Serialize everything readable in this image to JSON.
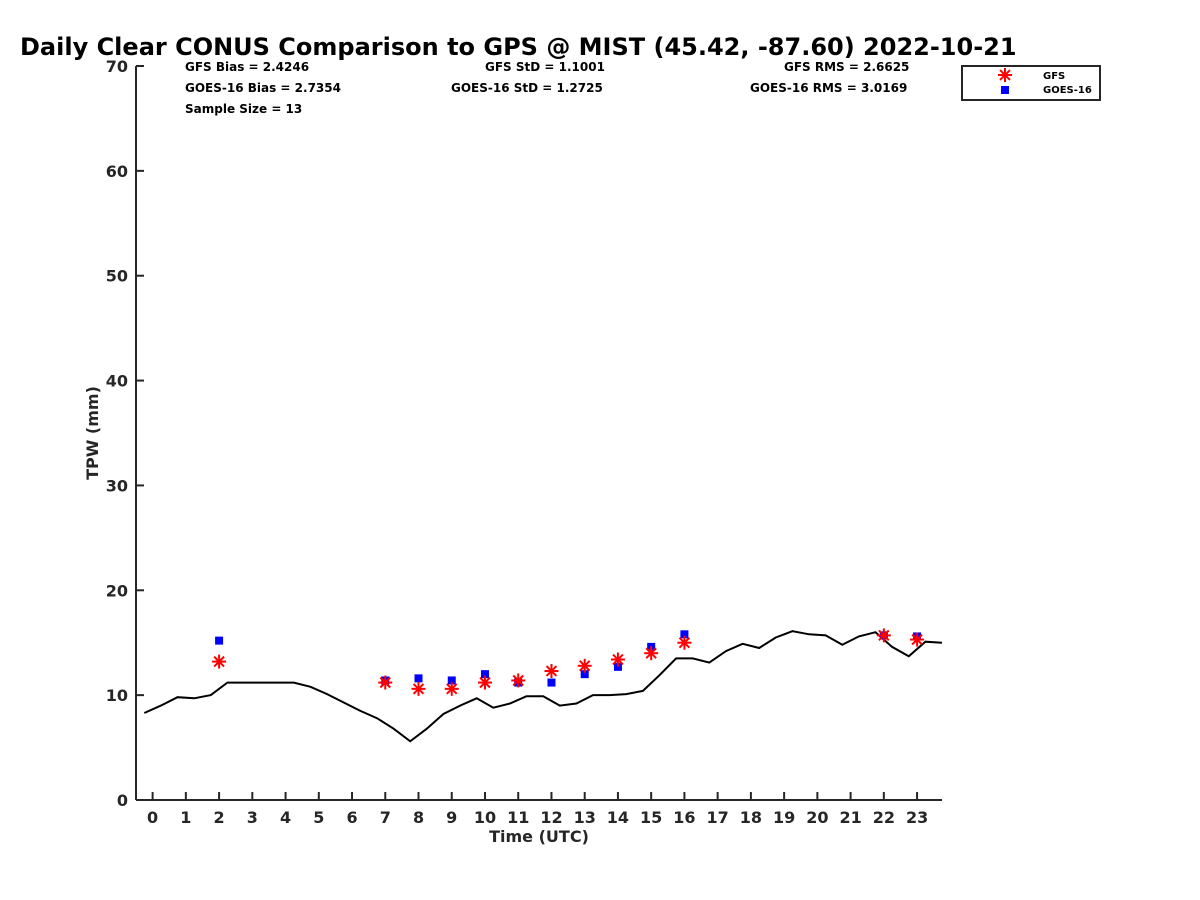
{
  "chart_data": {
    "type": "scatter",
    "title": "Daily Clear CONUS Comparison to GPS @ MIST (45.42, -87.60) 2022-10-21",
    "xlabel": "Time (UTC)",
    "ylabel": "TPW (mm)",
    "xlim": [
      -0.5,
      23.75
    ],
    "ylim": [
      0,
      70
    ],
    "x_ticks": [
      0,
      1,
      2,
      3,
      4,
      5,
      6,
      7,
      8,
      9,
      10,
      11,
      12,
      13,
      14,
      15,
      16,
      17,
      18,
      19,
      20,
      21,
      22,
      23
    ],
    "y_ticks": [
      0,
      10,
      20,
      30,
      40,
      50,
      60,
      70
    ],
    "grid": false,
    "legend_position": "top-right",
    "stats": {
      "gfs_bias": "GFS Bias = 2.4246",
      "goes_bias": "GOES-16 Bias = 2.7354",
      "sample_size": "Sample Size = 13",
      "gfs_std": "GFS StD = 1.1001",
      "goes_std": "GOES-16 StD = 1.2725",
      "gfs_rms": "GFS RMS = 2.6625",
      "goes_rms": "GOES-16 RMS = 3.0169"
    },
    "series": [
      {
        "name": "GFS",
        "marker": "asterisk",
        "color": "#ff0000",
        "points": [
          [
            2,
            13.2
          ],
          [
            7,
            11.2
          ],
          [
            8,
            10.6
          ],
          [
            9,
            10.6
          ],
          [
            10,
            11.2
          ],
          [
            11,
            11.4
          ],
          [
            12,
            12.3
          ],
          [
            13,
            12.8
          ],
          [
            14,
            13.4
          ],
          [
            15,
            14.0
          ],
          [
            16,
            15.0
          ],
          [
            22,
            15.7
          ],
          [
            23,
            15.3
          ]
        ]
      },
      {
        "name": "GOES-16",
        "marker": "square",
        "color": "#0000ff",
        "points": [
          [
            2,
            15.2
          ],
          [
            7,
            11.4
          ],
          [
            8,
            11.6
          ],
          [
            9,
            11.4
          ],
          [
            10,
            12.0
          ],
          [
            11,
            11.2
          ],
          [
            12,
            11.2
          ],
          [
            13,
            12.0
          ],
          [
            14,
            12.7
          ],
          [
            15,
            14.6
          ],
          [
            16,
            15.8
          ],
          [
            22,
            15.7
          ],
          [
            23,
            15.6
          ]
        ]
      },
      {
        "name": "GPS",
        "marker": "line",
        "color": "#000000",
        "points": [
          [
            -0.25,
            8.3
          ],
          [
            0.25,
            9.0
          ],
          [
            0.75,
            9.8
          ],
          [
            1.25,
            9.7
          ],
          [
            1.75,
            10.0
          ],
          [
            2.25,
            11.2
          ],
          [
            2.75,
            11.2
          ],
          [
            3.25,
            11.2
          ],
          [
            3.75,
            11.2
          ],
          [
            4.25,
            11.2
          ],
          [
            4.75,
            10.8
          ],
          [
            5.25,
            10.1
          ],
          [
            5.75,
            9.3
          ],
          [
            6.25,
            8.5
          ],
          [
            6.75,
            7.8
          ],
          [
            7.25,
            6.8
          ],
          [
            7.75,
            5.6
          ],
          [
            8.25,
            6.8
          ],
          [
            8.75,
            8.2
          ],
          [
            9.25,
            9.0
          ],
          [
            9.75,
            9.7
          ],
          [
            10.25,
            8.8
          ],
          [
            10.75,
            9.2
          ],
          [
            11.25,
            9.9
          ],
          [
            11.75,
            9.9
          ],
          [
            12.25,
            9.0
          ],
          [
            12.75,
            9.2
          ],
          [
            13.25,
            10.0
          ],
          [
            13.75,
            10.0
          ],
          [
            14.25,
            10.1
          ],
          [
            14.75,
            10.4
          ],
          [
            15.25,
            11.9
          ],
          [
            15.75,
            13.5
          ],
          [
            16.25,
            13.5
          ],
          [
            16.75,
            13.1
          ],
          [
            17.25,
            14.2
          ],
          [
            17.75,
            14.9
          ],
          [
            18.25,
            14.5
          ],
          [
            18.75,
            15.5
          ],
          [
            19.25,
            16.1
          ],
          [
            19.75,
            15.8
          ],
          [
            20.25,
            15.7
          ],
          [
            20.75,
            14.8
          ],
          [
            21.25,
            15.6
          ],
          [
            21.75,
            16.0
          ],
          [
            22.25,
            14.6
          ],
          [
            22.75,
            13.7
          ],
          [
            23.25,
            15.1
          ],
          [
            23.75,
            15.0
          ]
        ]
      }
    ]
  }
}
